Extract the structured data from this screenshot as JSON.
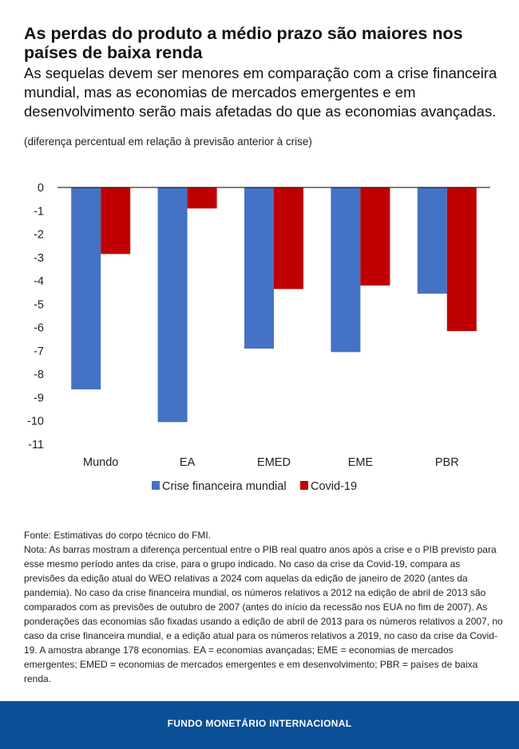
{
  "header": {
    "title": "As perdas do produto a médio prazo são maiores nos países de baixa renda",
    "subtitle": "As sequelas devem ser menores em comparação com a crise financeira mundial, mas as economias de mercados emergentes e em desenvolvimento serão mais afetadas do que as economias avançadas.",
    "units": "(diferença percentual em relação à previsão anterior à crise)"
  },
  "chart_data": {
    "type": "bar",
    "categories": [
      "Mundo",
      "EA",
      "EMED",
      "EME",
      "PBR"
    ],
    "series": [
      {
        "name": "Crise financeira mundial",
        "color": "#4472c4",
        "values": [
          -8.65,
          -10.05,
          -6.9,
          -7.05,
          -4.55
        ]
      },
      {
        "name": "Covid-19",
        "color": "#c00000",
        "values": [
          -2.85,
          -0.9,
          -4.35,
          -4.2,
          -6.15
        ]
      }
    ],
    "ylim": [
      -11,
      0
    ],
    "yticks": [
      0,
      -1,
      -2,
      -3,
      -4,
      -5,
      -6,
      -7,
      -8,
      -9,
      -10,
      -11
    ],
    "grid": false,
    "legend_position": "bottom"
  },
  "footnotes": {
    "source": "Fonte: Estimativas do corpo técnico do FMI.",
    "note": "Nota: As barras mostram a diferença percentual entre o PIB real quatro anos após a crise e o PIB previsto para esse mesmo período antes da crise, para o grupo indicado. No caso da crise da Covid-19, compara as previsões da edição atual do WEO relativas a 2024 com aquelas da edição de janeiro de 2020 (antes da pandemia). No caso da crise financeira mundial, os números relativos a 2012 na edição de abril de 2013 são comparados com as previsões de outubro de 2007 (antes do início da recessão nos EUA no fim de 2007). As ponderações das economias são fixadas usando a edição de abril de 2013 para os números relativos a 2007, no caso da crise financeira mundial, e a edição atual para os números relativos a 2019, no caso da crise da Covid-19. A amostra abrange 178 economias. EA = economias avançadas; EME = economias de mercados emergentes; EMED = economias de mercados emergentes e em desenvolvimento; PBR = países de baixa renda."
  },
  "footer": {
    "org": "FUNDO MONETÁRIO INTERNACIONAL"
  }
}
